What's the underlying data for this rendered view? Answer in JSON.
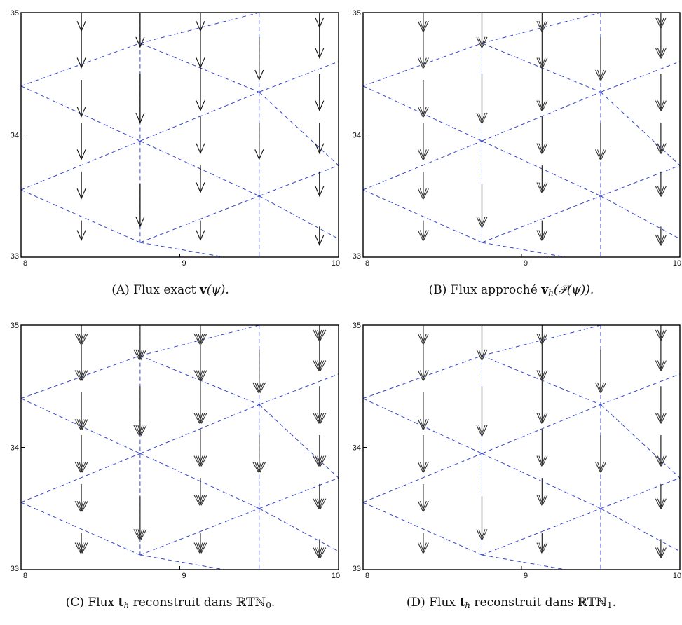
{
  "panels": [
    {
      "id": "A",
      "caption": {
        "letter": "(A)",
        "text": " Flux exact ",
        "sym": "v",
        "arg": "(ψ)."
      },
      "chart_data": {
        "type": "quiver",
        "xlim": [
          8,
          10
        ],
        "ylim": [
          33,
          35
        ],
        "xticks": [
          "8",
          "9",
          "10"
        ],
        "yticks": [
          "33",
          "34",
          "35"
        ],
        "grid_color": "#3344cc",
        "arrow_color": "#111111",
        "grid_vertices": [
          [
            8.75,
            35.0
          ],
          [
            9.5,
            35.0
          ],
          [
            8.75,
            34.75
          ],
          [
            9.5,
            34.35
          ],
          [
            8.0,
            34.4
          ],
          [
            8.75,
            33.95
          ],
          [
            10.0,
            34.6
          ],
          [
            8.0,
            33.55
          ],
          [
            9.5,
            33.5
          ],
          [
            10.0,
            33.75
          ],
          [
            8.75,
            33.12
          ],
          [
            9.5,
            32.95
          ],
          [
            10.0,
            33.15
          ]
        ],
        "arrows": [
          {
            "x": 8.38,
            "y": 35.0,
            "dy": -0.15
          },
          {
            "x": 8.38,
            "y": 34.9,
            "dy": -0.35
          },
          {
            "x": 8.38,
            "y": 34.45,
            "dy": -0.3
          },
          {
            "x": 8.38,
            "y": 34.1,
            "dy": -0.3
          },
          {
            "x": 8.38,
            "y": 33.7,
            "dy": -0.22
          },
          {
            "x": 8.38,
            "y": 33.3,
            "dy": -0.16
          },
          {
            "x": 8.75,
            "y": 35.0,
            "dy": -0.28
          },
          {
            "x": 8.75,
            "y": 34.5,
            "dy": -0.4
          },
          {
            "x": 8.75,
            "y": 33.6,
            "dy": -0.35
          },
          {
            "x": 9.13,
            "y": 35.0,
            "dy": -0.15
          },
          {
            "x": 9.13,
            "y": 34.9,
            "dy": -0.35
          },
          {
            "x": 9.13,
            "y": 34.55,
            "dy": -0.35
          },
          {
            "x": 9.13,
            "y": 34.15,
            "dy": -0.3
          },
          {
            "x": 9.13,
            "y": 33.75,
            "dy": -0.22
          },
          {
            "x": 9.13,
            "y": 33.3,
            "dy": -0.16
          },
          {
            "x": 9.5,
            "y": 34.8,
            "dy": -0.35
          },
          {
            "x": 9.5,
            "y": 34.1,
            "dy": -0.3
          },
          {
            "x": 9.88,
            "y": 35.0,
            "dy": -0.12
          },
          {
            "x": 9.88,
            "y": 34.95,
            "dy": -0.32
          },
          {
            "x": 9.88,
            "y": 34.5,
            "dy": -0.3
          },
          {
            "x": 9.88,
            "y": 34.1,
            "dy": -0.25
          },
          {
            "x": 9.88,
            "y": 33.7,
            "dy": -0.2
          },
          {
            "x": 9.88,
            "y": 33.25,
            "dy": -0.15
          }
        ]
      }
    },
    {
      "id": "B",
      "caption": {
        "letter": "(B)",
        "text": " Flux approché ",
        "sym": "v",
        "sub": "h",
        "arg": "(𝒫(ψ))."
      },
      "chart_data": {
        "type": "quiver",
        "xlim": [
          8,
          10
        ],
        "ylim": [
          33,
          35
        ],
        "xticks": [
          "8",
          "9",
          "10"
        ],
        "yticks": [
          "33",
          "34",
          "35"
        ],
        "grid_color": "#3344cc",
        "arrow_color": "#333333",
        "grid_vertices": [
          [
            8.75,
            35.0
          ],
          [
            9.5,
            35.0
          ],
          [
            8.75,
            34.75
          ],
          [
            9.5,
            34.35
          ],
          [
            8.0,
            34.4
          ],
          [
            8.75,
            33.95
          ],
          [
            10.0,
            34.6
          ],
          [
            8.0,
            33.55
          ],
          [
            9.5,
            33.5
          ],
          [
            10.0,
            33.75
          ],
          [
            8.75,
            33.12
          ],
          [
            9.5,
            32.95
          ],
          [
            10.0,
            33.15
          ]
        ],
        "arrows": [
          {
            "x": 8.38,
            "y": 35.0,
            "dy": -0.15
          },
          {
            "x": 8.38,
            "y": 34.9,
            "dy": -0.35
          },
          {
            "x": 8.38,
            "y": 34.45,
            "dy": -0.3
          },
          {
            "x": 8.38,
            "y": 34.1,
            "dy": -0.3
          },
          {
            "x": 8.38,
            "y": 33.7,
            "dy": -0.22
          },
          {
            "x": 8.38,
            "y": 33.3,
            "dy": -0.16
          },
          {
            "x": 8.75,
            "y": 35.0,
            "dy": -0.28
          },
          {
            "x": 8.75,
            "y": 34.5,
            "dy": -0.4
          },
          {
            "x": 8.75,
            "y": 33.6,
            "dy": -0.35
          },
          {
            "x": 9.13,
            "y": 35.0,
            "dy": -0.15
          },
          {
            "x": 9.13,
            "y": 34.9,
            "dy": -0.35
          },
          {
            "x": 9.13,
            "y": 34.55,
            "dy": -0.35
          },
          {
            "x": 9.13,
            "y": 34.15,
            "dy": -0.3
          },
          {
            "x": 9.13,
            "y": 33.75,
            "dy": -0.22
          },
          {
            "x": 9.13,
            "y": 33.3,
            "dy": -0.16
          },
          {
            "x": 9.5,
            "y": 34.8,
            "dy": -0.35
          },
          {
            "x": 9.5,
            "y": 34.1,
            "dy": -0.3
          },
          {
            "x": 9.88,
            "y": 35.0,
            "dy": -0.12
          },
          {
            "x": 9.88,
            "y": 34.95,
            "dy": -0.32
          },
          {
            "x": 9.88,
            "y": 34.5,
            "dy": -0.3
          },
          {
            "x": 9.88,
            "y": 34.1,
            "dy": -0.25
          },
          {
            "x": 9.88,
            "y": 33.7,
            "dy": -0.2
          },
          {
            "x": 9.88,
            "y": 33.25,
            "dy": -0.15
          }
        ]
      }
    },
    {
      "id": "C",
      "caption": {
        "letter": "(C)",
        "text": " Flux ",
        "sym": "t",
        "sub": "h",
        "arg": " reconstruit dans ℝ𝕋ℕ",
        "argsub": "0",
        "end": "."
      },
      "chart_data": {
        "type": "quiver",
        "xlim": [
          8,
          10
        ],
        "ylim": [
          33,
          35
        ],
        "xticks": [
          "8",
          "9",
          "10"
        ],
        "yticks": [
          "33",
          "34",
          "35"
        ],
        "grid_color": "#3344cc",
        "arrow_color": "#333333",
        "grid_vertices": [
          [
            8.75,
            35.0
          ],
          [
            9.5,
            35.0
          ],
          [
            8.75,
            34.75
          ],
          [
            9.5,
            34.35
          ],
          [
            8.0,
            34.4
          ],
          [
            8.75,
            33.95
          ],
          [
            10.0,
            34.6
          ],
          [
            8.0,
            33.55
          ],
          [
            9.5,
            33.5
          ],
          [
            10.0,
            33.75
          ],
          [
            8.75,
            33.12
          ],
          [
            9.5,
            32.95
          ],
          [
            10.0,
            33.15
          ]
        ],
        "arrows": [
          {
            "x": 8.38,
            "y": 35.0,
            "dy": -0.15
          },
          {
            "x": 8.38,
            "y": 34.9,
            "dy": -0.35
          },
          {
            "x": 8.38,
            "y": 34.45,
            "dy": -0.3
          },
          {
            "x": 8.38,
            "y": 34.1,
            "dy": -0.3
          },
          {
            "x": 8.38,
            "y": 33.7,
            "dy": -0.22
          },
          {
            "x": 8.38,
            "y": 33.3,
            "dy": -0.16
          },
          {
            "x": 8.75,
            "y": 35.0,
            "dy": -0.28
          },
          {
            "x": 8.75,
            "y": 34.5,
            "dy": -0.4
          },
          {
            "x": 8.75,
            "y": 33.6,
            "dy": -0.35
          },
          {
            "x": 9.13,
            "y": 35.0,
            "dy": -0.15
          },
          {
            "x": 9.13,
            "y": 34.9,
            "dy": -0.35
          },
          {
            "x": 9.13,
            "y": 34.55,
            "dy": -0.35
          },
          {
            "x": 9.13,
            "y": 34.15,
            "dy": -0.3
          },
          {
            "x": 9.13,
            "y": 33.75,
            "dy": -0.22
          },
          {
            "x": 9.13,
            "y": 33.3,
            "dy": -0.16
          },
          {
            "x": 9.5,
            "y": 34.8,
            "dy": -0.35
          },
          {
            "x": 9.5,
            "y": 34.1,
            "dy": -0.3
          },
          {
            "x": 9.88,
            "y": 35.0,
            "dy": -0.12
          },
          {
            "x": 9.88,
            "y": 34.95,
            "dy": -0.32
          },
          {
            "x": 9.88,
            "y": 34.5,
            "dy": -0.3
          },
          {
            "x": 9.88,
            "y": 34.1,
            "dy": -0.25
          },
          {
            "x": 9.88,
            "y": 33.7,
            "dy": -0.2
          },
          {
            "x": 9.88,
            "y": 33.25,
            "dy": -0.15
          }
        ]
      }
    },
    {
      "id": "D",
      "caption": {
        "letter": "(D)",
        "text": " Flux ",
        "sym": "t",
        "sub": "h",
        "arg": " reconstruit dans ℝ𝕋ℕ",
        "argsub": "1",
        "end": "."
      },
      "chart_data": {
        "type": "quiver",
        "xlim": [
          8,
          10
        ],
        "ylim": [
          33,
          35
        ],
        "xticks": [
          "8",
          "9",
          "10"
        ],
        "yticks": [
          "33",
          "34",
          "35"
        ],
        "grid_color": "#3344cc",
        "arrow_color": "#333333",
        "grid_vertices": [
          [
            8.75,
            35.0
          ],
          [
            9.5,
            35.0
          ],
          [
            8.75,
            34.75
          ],
          [
            9.5,
            34.35
          ],
          [
            8.0,
            34.4
          ],
          [
            8.75,
            33.95
          ],
          [
            10.0,
            34.6
          ],
          [
            8.0,
            33.55
          ],
          [
            9.5,
            33.5
          ],
          [
            10.0,
            33.75
          ],
          [
            8.75,
            33.12
          ],
          [
            9.5,
            32.95
          ],
          [
            10.0,
            33.15
          ]
        ],
        "arrows": [
          {
            "x": 8.38,
            "y": 35.0,
            "dy": -0.15
          },
          {
            "x": 8.38,
            "y": 34.9,
            "dy": -0.35
          },
          {
            "x": 8.38,
            "y": 34.45,
            "dy": -0.3
          },
          {
            "x": 8.38,
            "y": 34.1,
            "dy": -0.3
          },
          {
            "x": 8.38,
            "y": 33.7,
            "dy": -0.22
          },
          {
            "x": 8.38,
            "y": 33.3,
            "dy": -0.16
          },
          {
            "x": 8.75,
            "y": 35.0,
            "dy": -0.28
          },
          {
            "x": 8.75,
            "y": 34.5,
            "dy": -0.4
          },
          {
            "x": 8.75,
            "y": 33.6,
            "dy": -0.35
          },
          {
            "x": 9.13,
            "y": 35.0,
            "dy": -0.15
          },
          {
            "x": 9.13,
            "y": 34.9,
            "dy": -0.35
          },
          {
            "x": 9.13,
            "y": 34.55,
            "dy": -0.35
          },
          {
            "x": 9.13,
            "y": 34.15,
            "dy": -0.3
          },
          {
            "x": 9.13,
            "y": 33.75,
            "dy": -0.22
          },
          {
            "x": 9.13,
            "y": 33.3,
            "dy": -0.16
          },
          {
            "x": 9.5,
            "y": 34.8,
            "dy": -0.35
          },
          {
            "x": 9.5,
            "y": 34.1,
            "dy": -0.3
          },
          {
            "x": 9.88,
            "y": 35.0,
            "dy": -0.12
          },
          {
            "x": 9.88,
            "y": 34.95,
            "dy": -0.32
          },
          {
            "x": 9.88,
            "y": 34.5,
            "dy": -0.3
          },
          {
            "x": 9.88,
            "y": 34.1,
            "dy": -0.25
          },
          {
            "x": 9.88,
            "y": 33.7,
            "dy": -0.2
          },
          {
            "x": 9.88,
            "y": 33.25,
            "dy": -0.15
          }
        ]
      }
    }
  ]
}
